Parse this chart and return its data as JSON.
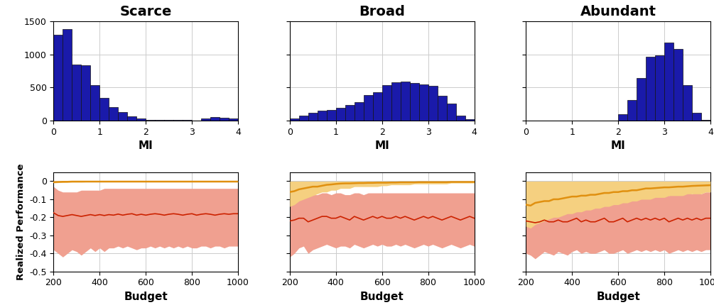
{
  "titles": [
    "Scarce",
    "Broad",
    "Abundant"
  ],
  "bar_color": "#1a1aaa",
  "bar_edgecolor": "#111111",
  "hist_xlim": [
    0,
    4
  ],
  "hist_ylim": [
    0,
    1500
  ],
  "hist_xlabel": "MI",
  "hist_yticks": [
    0,
    500,
    1000,
    1500
  ],
  "hist_xticks": [
    0,
    1,
    2,
    3,
    4
  ],
  "scarce_bin_edges": [
    0.0,
    0.2,
    0.4,
    0.6,
    0.8,
    1.0,
    1.2,
    1.4,
    1.6,
    1.8,
    2.0,
    2.2,
    2.4,
    2.6,
    2.8,
    3.0,
    3.2,
    3.4,
    3.6,
    3.8,
    4.0
  ],
  "scarce_counts": [
    1300,
    1380,
    850,
    840,
    540,
    340,
    200,
    130,
    60,
    30,
    15,
    10,
    8,
    8,
    6,
    5,
    35,
    50,
    45,
    30
  ],
  "broad_bin_edges": [
    0.0,
    0.2,
    0.4,
    0.6,
    0.8,
    1.0,
    1.2,
    1.4,
    1.6,
    1.8,
    2.0,
    2.2,
    2.4,
    2.6,
    2.8,
    3.0,
    3.2,
    3.4,
    3.6,
    3.8,
    4.0
  ],
  "broad_counts": [
    30,
    80,
    120,
    150,
    165,
    190,
    240,
    280,
    390,
    430,
    540,
    575,
    590,
    570,
    550,
    530,
    380,
    260,
    80,
    20
  ],
  "abundant_bin_edges": [
    0.0,
    0.2,
    0.4,
    0.6,
    0.8,
    1.0,
    1.2,
    1.4,
    1.6,
    1.8,
    2.0,
    2.2,
    2.4,
    2.6,
    2.8,
    3.0,
    3.2,
    3.4,
    3.6,
    3.8,
    4.0
  ],
  "abundant_counts": [
    0,
    0,
    0,
    0,
    0,
    0,
    0,
    0,
    0,
    0,
    100,
    310,
    640,
    960,
    990,
    1180,
    1080,
    540,
    120,
    10
  ],
  "budget_x": [
    200,
    220,
    240,
    260,
    280,
    300,
    320,
    340,
    360,
    380,
    400,
    420,
    440,
    460,
    480,
    500,
    520,
    540,
    560,
    580,
    600,
    620,
    640,
    660,
    680,
    700,
    720,
    740,
    760,
    780,
    800,
    820,
    840,
    860,
    880,
    900,
    920,
    940,
    960,
    980,
    1000
  ],
  "perf_xlim": [
    200,
    1000
  ],
  "perf_ylim": [
    -0.5,
    0.05
  ],
  "perf_yticks": [
    0,
    -0.1,
    -0.2,
    -0.3,
    -0.4,
    -0.5
  ],
  "perf_xticks": [
    200,
    400,
    600,
    800,
    1000
  ],
  "perf_xlabel": "Budget",
  "perf_ylabel": "Realized Performance",
  "scarce_orange_mean": [
    -0.005,
    -0.004,
    -0.003,
    -0.003,
    -0.002,
    -0.002,
    -0.002,
    -0.002,
    -0.002,
    -0.002,
    -0.002,
    -0.002,
    -0.002,
    -0.002,
    -0.002,
    -0.002,
    -0.002,
    -0.002,
    -0.002,
    -0.002,
    -0.002,
    -0.002,
    -0.002,
    -0.002,
    -0.002,
    -0.002,
    -0.002,
    -0.002,
    -0.002,
    -0.002,
    -0.002,
    -0.002,
    -0.002,
    -0.002,
    -0.002,
    -0.002,
    -0.002,
    -0.002,
    -0.002,
    -0.002,
    -0.002
  ],
  "scarce_orange_upper": [
    0.0,
    0.0,
    0.0,
    0.0,
    0.0,
    0.0,
    0.0,
    0.0,
    0.0,
    0.0,
    0.0,
    0.0,
    0.0,
    0.0,
    0.0,
    0.0,
    0.0,
    0.0,
    0.0,
    0.0,
    0.0,
    0.0,
    0.0,
    0.0,
    0.0,
    0.0,
    0.0,
    0.0,
    0.0,
    0.0,
    0.0,
    0.0,
    0.0,
    0.0,
    0.0,
    0.0,
    0.0,
    0.0,
    0.0,
    0.0,
    0.0
  ],
  "scarce_orange_lower": [
    -0.01,
    -0.008,
    -0.007,
    -0.006,
    -0.005,
    -0.005,
    -0.005,
    -0.004,
    -0.004,
    -0.004,
    -0.004,
    -0.004,
    -0.004,
    -0.004,
    -0.004,
    -0.004,
    -0.004,
    -0.004,
    -0.004,
    -0.004,
    -0.004,
    -0.004,
    -0.004,
    -0.004,
    -0.004,
    -0.004,
    -0.004,
    -0.004,
    -0.004,
    -0.004,
    -0.004,
    -0.004,
    -0.004,
    -0.004,
    -0.004,
    -0.004,
    -0.004,
    -0.004,
    -0.004,
    -0.004,
    -0.004
  ],
  "scarce_red_mean": [
    -0.175,
    -0.19,
    -0.195,
    -0.19,
    -0.185,
    -0.19,
    -0.195,
    -0.19,
    -0.185,
    -0.19,
    -0.185,
    -0.19,
    -0.185,
    -0.188,
    -0.182,
    -0.188,
    -0.183,
    -0.18,
    -0.188,
    -0.183,
    -0.188,
    -0.183,
    -0.18,
    -0.183,
    -0.188,
    -0.183,
    -0.18,
    -0.183,
    -0.188,
    -0.183,
    -0.18,
    -0.188,
    -0.183,
    -0.18,
    -0.183,
    -0.188,
    -0.183,
    -0.18,
    -0.183,
    -0.18,
    -0.18
  ],
  "scarce_red_upper": [
    -0.03,
    -0.05,
    -0.06,
    -0.06,
    -0.06,
    -0.06,
    -0.05,
    -0.05,
    -0.05,
    -0.05,
    -0.05,
    -0.04,
    -0.04,
    -0.04,
    -0.04,
    -0.04,
    -0.04,
    -0.04,
    -0.04,
    -0.04,
    -0.04,
    -0.04,
    -0.04,
    -0.04,
    -0.04,
    -0.04,
    -0.04,
    -0.04,
    -0.04,
    -0.04,
    -0.04,
    -0.04,
    -0.04,
    -0.04,
    -0.04,
    -0.04,
    -0.04,
    -0.04,
    -0.04,
    -0.04,
    -0.04
  ],
  "scarce_red_lower": [
    -0.38,
    -0.4,
    -0.42,
    -0.4,
    -0.38,
    -0.39,
    -0.41,
    -0.39,
    -0.37,
    -0.39,
    -0.37,
    -0.39,
    -0.37,
    -0.37,
    -0.36,
    -0.37,
    -0.36,
    -0.37,
    -0.38,
    -0.37,
    -0.37,
    -0.36,
    -0.37,
    -0.36,
    -0.37,
    -0.36,
    -0.37,
    -0.36,
    -0.37,
    -0.36,
    -0.37,
    -0.37,
    -0.36,
    -0.36,
    -0.37,
    -0.36,
    -0.36,
    -0.37,
    -0.36,
    -0.36,
    -0.36
  ],
  "broad_orange_mean": [
    -0.06,
    -0.055,
    -0.045,
    -0.04,
    -0.035,
    -0.03,
    -0.03,
    -0.025,
    -0.02,
    -0.018,
    -0.015,
    -0.013,
    -0.012,
    -0.012,
    -0.011,
    -0.01,
    -0.01,
    -0.009,
    -0.009,
    -0.008,
    -0.008,
    -0.008,
    -0.007,
    -0.007,
    -0.006,
    -0.006,
    -0.006,
    -0.006,
    -0.005,
    -0.005,
    -0.005,
    -0.005,
    -0.005,
    -0.005,
    -0.005,
    -0.004,
    -0.004,
    -0.004,
    -0.004,
    -0.004,
    -0.004
  ],
  "broad_orange_upper": [
    0.0,
    0.0,
    0.0,
    0.0,
    0.0,
    0.0,
    0.0,
    0.0,
    0.0,
    0.0,
    0.0,
    0.0,
    0.0,
    0.0,
    0.0,
    0.0,
    0.0,
    0.0,
    0.0,
    0.0,
    0.0,
    0.0,
    0.0,
    0.0,
    0.0,
    0.0,
    0.0,
    0.0,
    0.0,
    0.0,
    0.0,
    0.0,
    0.0,
    0.0,
    0.0,
    0.0,
    0.0,
    0.0,
    0.0,
    0.0,
    0.0
  ],
  "broad_orange_lower": [
    -0.14,
    -0.13,
    -0.11,
    -0.1,
    -0.09,
    -0.08,
    -0.07,
    -0.06,
    -0.06,
    -0.05,
    -0.05,
    -0.04,
    -0.04,
    -0.04,
    -0.03,
    -0.03,
    -0.03,
    -0.03,
    -0.03,
    -0.03,
    -0.025,
    -0.025,
    -0.02,
    -0.02,
    -0.02,
    -0.02,
    -0.02,
    -0.015,
    -0.015,
    -0.015,
    -0.015,
    -0.015,
    -0.015,
    -0.015,
    -0.015,
    -0.01,
    -0.01,
    -0.01,
    -0.01,
    -0.01,
    -0.01
  ],
  "broad_red_mean": [
    -0.22,
    -0.215,
    -0.205,
    -0.205,
    -0.225,
    -0.215,
    -0.205,
    -0.195,
    -0.195,
    -0.205,
    -0.205,
    -0.195,
    -0.205,
    -0.215,
    -0.195,
    -0.205,
    -0.215,
    -0.205,
    -0.195,
    -0.205,
    -0.195,
    -0.205,
    -0.205,
    -0.195,
    -0.205,
    -0.195,
    -0.205,
    -0.215,
    -0.205,
    -0.195,
    -0.205,
    -0.195,
    -0.205,
    -0.215,
    -0.205,
    -0.195,
    -0.205,
    -0.215,
    -0.205,
    -0.195,
    -0.205
  ],
  "broad_red_upper": [
    -0.07,
    -0.065,
    -0.055,
    -0.055,
    -0.085,
    -0.075,
    -0.075,
    -0.065,
    -0.065,
    -0.075,
    -0.065,
    -0.065,
    -0.075,
    -0.075,
    -0.065,
    -0.065,
    -0.075,
    -0.065,
    -0.065,
    -0.065,
    -0.065,
    -0.065,
    -0.065,
    -0.065,
    -0.065,
    -0.065,
    -0.065,
    -0.065,
    -0.065,
    -0.065,
    -0.065,
    -0.065,
    -0.065,
    -0.065,
    -0.065,
    -0.065,
    -0.065,
    -0.065,
    -0.065,
    -0.065,
    -0.065
  ],
  "broad_red_lower": [
    -0.42,
    -0.4,
    -0.37,
    -0.36,
    -0.4,
    -0.38,
    -0.37,
    -0.36,
    -0.35,
    -0.36,
    -0.37,
    -0.36,
    -0.36,
    -0.37,
    -0.35,
    -0.36,
    -0.37,
    -0.36,
    -0.35,
    -0.36,
    -0.35,
    -0.36,
    -0.36,
    -0.35,
    -0.36,
    -0.35,
    -0.36,
    -0.37,
    -0.36,
    -0.35,
    -0.36,
    -0.35,
    -0.36,
    -0.37,
    -0.36,
    -0.35,
    -0.36,
    -0.37,
    -0.36,
    -0.35,
    -0.36
  ],
  "abundant_orange_mean": [
    -0.13,
    -0.135,
    -0.12,
    -0.115,
    -0.11,
    -0.11,
    -0.1,
    -0.1,
    -0.095,
    -0.09,
    -0.085,
    -0.085,
    -0.08,
    -0.08,
    -0.075,
    -0.075,
    -0.07,
    -0.065,
    -0.065,
    -0.06,
    -0.06,
    -0.055,
    -0.055,
    -0.05,
    -0.05,
    -0.045,
    -0.04,
    -0.04,
    -0.038,
    -0.036,
    -0.034,
    -0.034,
    -0.032,
    -0.03,
    -0.03,
    -0.028,
    -0.026,
    -0.025,
    -0.024,
    -0.023,
    -0.022
  ],
  "abundant_orange_upper": [
    0.0,
    0.0,
    0.0,
    0.0,
    0.0,
    0.0,
    0.0,
    0.0,
    0.0,
    0.0,
    0.0,
    0.0,
    0.0,
    0.0,
    0.0,
    0.0,
    0.0,
    0.0,
    0.0,
    0.0,
    0.0,
    0.0,
    0.0,
    0.0,
    0.0,
    0.0,
    0.0,
    0.0,
    0.0,
    0.0,
    0.0,
    0.0,
    0.0,
    0.0,
    0.0,
    0.0,
    0.0,
    0.0,
    0.0,
    0.0,
    0.0
  ],
  "abundant_orange_lower": [
    -0.25,
    -0.26,
    -0.24,
    -0.23,
    -0.22,
    -0.21,
    -0.2,
    -0.2,
    -0.19,
    -0.18,
    -0.18,
    -0.17,
    -0.17,
    -0.16,
    -0.16,
    -0.15,
    -0.15,
    -0.14,
    -0.14,
    -0.13,
    -0.13,
    -0.12,
    -0.12,
    -0.11,
    -0.11,
    -0.1,
    -0.1,
    -0.1,
    -0.09,
    -0.09,
    -0.09,
    -0.08,
    -0.08,
    -0.08,
    -0.08,
    -0.07,
    -0.07,
    -0.07,
    -0.07,
    -0.06,
    -0.06
  ],
  "abundant_red_mean": [
    -0.22,
    -0.225,
    -0.23,
    -0.225,
    -0.215,
    -0.225,
    -0.225,
    -0.215,
    -0.225,
    -0.225,
    -0.215,
    -0.205,
    -0.225,
    -0.215,
    -0.225,
    -0.225,
    -0.215,
    -0.205,
    -0.225,
    -0.225,
    -0.215,
    -0.205,
    -0.225,
    -0.215,
    -0.205,
    -0.215,
    -0.205,
    -0.215,
    -0.205,
    -0.215,
    -0.205,
    -0.225,
    -0.215,
    -0.205,
    -0.215,
    -0.205,
    -0.215,
    -0.205,
    -0.215,
    -0.205,
    -0.205
  ],
  "abundant_red_upper": [
    -0.08,
    -0.08,
    -0.09,
    -0.08,
    -0.08,
    -0.08,
    -0.08,
    -0.07,
    -0.08,
    -0.08,
    -0.07,
    -0.07,
    -0.08,
    -0.07,
    -0.08,
    -0.08,
    -0.07,
    -0.06,
    -0.08,
    -0.08,
    -0.07,
    -0.06,
    -0.08,
    -0.07,
    -0.06,
    -0.07,
    -0.06,
    -0.07,
    -0.06,
    -0.07,
    -0.06,
    -0.08,
    -0.07,
    -0.06,
    -0.07,
    -0.06,
    -0.07,
    -0.06,
    -0.07,
    -0.06,
    -0.06
  ],
  "abundant_red_lower": [
    -0.4,
    -0.41,
    -0.43,
    -0.41,
    -0.39,
    -0.4,
    -0.41,
    -0.39,
    -0.4,
    -0.41,
    -0.39,
    -0.38,
    -0.4,
    -0.39,
    -0.4,
    -0.4,
    -0.39,
    -0.38,
    -0.4,
    -0.4,
    -0.39,
    -0.38,
    -0.4,
    -0.39,
    -0.38,
    -0.39,
    -0.38,
    -0.39,
    -0.38,
    -0.39,
    -0.38,
    -0.4,
    -0.39,
    -0.38,
    -0.39,
    -0.38,
    -0.39,
    -0.38,
    -0.39,
    -0.38,
    -0.38
  ],
  "orange_color": "#e09010",
  "orange_fill": "#f5d080",
  "red_color": "#cc2200",
  "red_fill": "#f0a090",
  "grid_color": "#cccccc",
  "tick_fontsize": 9,
  "label_fontsize": 11,
  "title_fontsize": 14
}
